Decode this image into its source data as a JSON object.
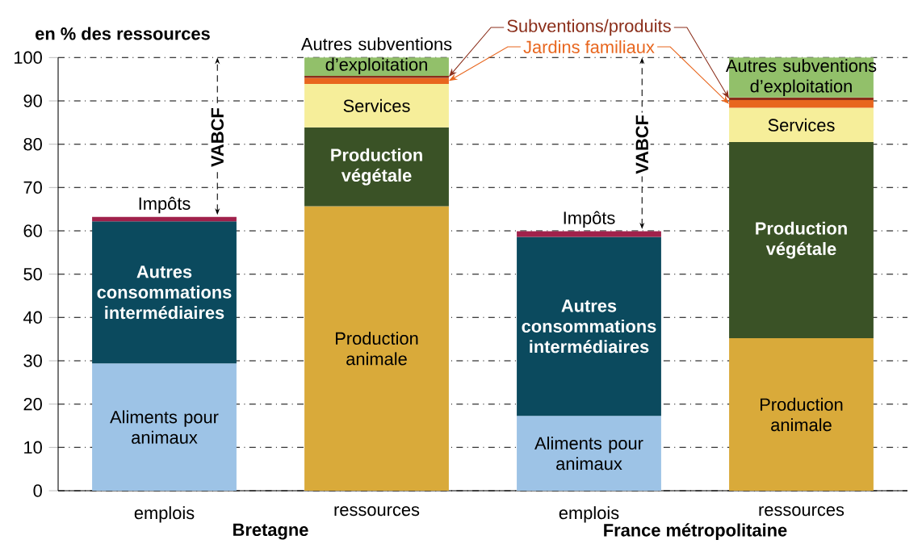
{
  "chart_data": {
    "type": "bar",
    "stacked": true,
    "ylabel": "en % des ressources",
    "categories": [
      "emplois",
      "ressources",
      "emplois",
      "ressources"
    ],
    "series": [
      {
        "name": "Aliments pour animaux",
        "color": "#9dc3e6",
        "values": [
          29.4,
          null,
          17.3,
          null
        ]
      },
      {
        "name": "Autres consommations intermédiaires",
        "color": "#0b4a5e",
        "values": [
          32.8,
          null,
          41.3,
          null
        ]
      },
      {
        "name": "Impôts",
        "color": "#a0214b",
        "values": [
          1.0,
          null,
          1.3,
          null
        ]
      },
      {
        "name": "Production animale",
        "color": "#d9aa3a",
        "values": [
          null,
          65.7,
          null,
          35.2
        ]
      },
      {
        "name": "Production végétale",
        "color": "#3a5226",
        "values": [
          null,
          18.2,
          null,
          45.3
        ]
      },
      {
        "name": "Services",
        "color": "#f6ee9a",
        "values": [
          null,
          10.0,
          null,
          7.9
        ]
      },
      {
        "name": "Jardins familiaux",
        "color": "#e8661e",
        "values": [
          null,
          1.4,
          null,
          1.8
        ]
      },
      {
        "name": "Subventions/produits",
        "color": "#8b2e1a",
        "values": [
          null,
          0.5,
          null,
          0.6
        ]
      },
      {
        "name": "Autres subventions d’exploitation",
        "color": "#92c06a",
        "values": [
          null,
          4.2,
          null,
          9.2
        ]
      }
    ],
    "ylim": [
      0,
      100
    ],
    "yticks": [
      0,
      10,
      20,
      30,
      40,
      50,
      60,
      70,
      80,
      90,
      100
    ],
    "grid": "y",
    "annotations": [
      "Bretagne",
      "France métropolitaine",
      "VABCF",
      "VABCF"
    ]
  }
}
